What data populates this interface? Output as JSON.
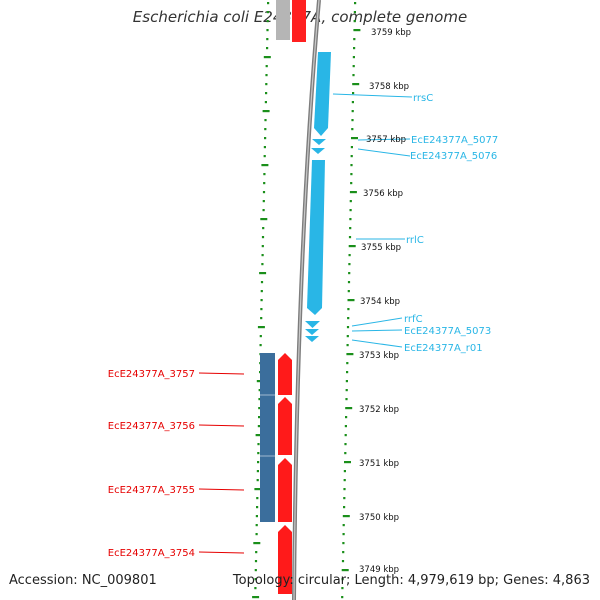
{
  "title": "Escherichia coli E24377A, complete genome",
  "footer": {
    "accession": "Accession: NC_009801",
    "summary": "Topology: circular; Length: 4,979,619 bp; Genes: 4,863"
  },
  "colors": {
    "rna_feature": "#29b6e6",
    "cds_forward": "#ff0000",
    "cds_reverse": "#3b6e9c",
    "tick": "#1a8f1a",
    "backbone": "#8a8a8a",
    "label_red": "#e60000",
    "label_blue": "#29b6e6"
  },
  "scale": {
    "unit": "kbp",
    "ticks": [
      {
        "label": "3759 kbp",
        "value": 3759
      },
      {
        "label": "3758 kbp",
        "value": 3758
      },
      {
        "label": "3757 kbp",
        "value": 3757
      },
      {
        "label": "3756 kbp",
        "value": 3756
      },
      {
        "label": "3755 kbp",
        "value": 3755
      },
      {
        "label": "3754 kbp",
        "value": 3754
      },
      {
        "label": "3753 kbp",
        "value": 3753
      },
      {
        "label": "3752 kbp",
        "value": 3752
      },
      {
        "label": "3751 kbp",
        "value": 3751
      },
      {
        "label": "3750 kbp",
        "value": 3750
      },
      {
        "label": "3749 kbp",
        "value": 3749
      }
    ]
  },
  "labels_right": [
    "rrsC",
    "EcE24377A_5077",
    "EcE24377A_5076",
    "rrlC",
    "rrfC",
    "EcE24377A_5073",
    "EcE24377A_r01"
  ],
  "labels_left": [
    "EcE24377A_3757",
    "EcE24377A_3756",
    "EcE24377A_3755",
    "EcE24377A_3754"
  ]
}
